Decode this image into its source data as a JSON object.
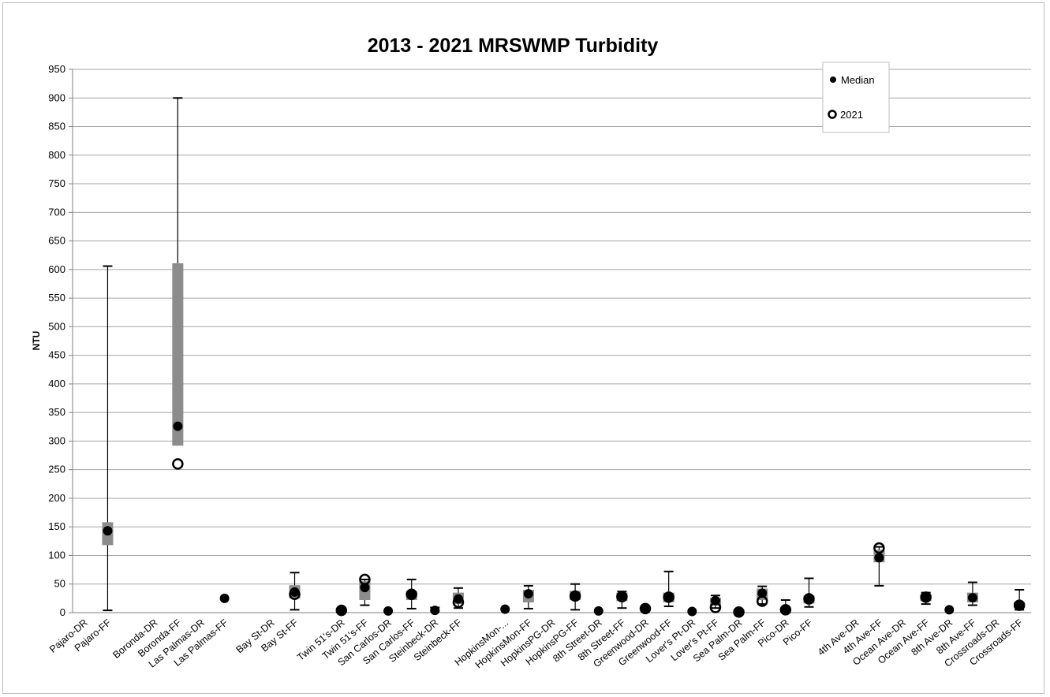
{
  "chart_data": {
    "type": "boxplot",
    "title": "2013 - 2021 MRSWMP Turbidity",
    "ylabel": "NTU",
    "ylim": [
      0,
      950
    ],
    "yticks": [
      0,
      50,
      100,
      150,
      200,
      250,
      300,
      350,
      400,
      450,
      500,
      550,
      600,
      650,
      700,
      750,
      800,
      850,
      900,
      950
    ],
    "grid": true,
    "legend": {
      "position": "top-right",
      "entries": [
        {
          "label": "Median",
          "marker": "filled-circle"
        },
        {
          "label": "2021",
          "marker": "open-circle"
        }
      ]
    },
    "colors": {
      "box": "#8c8c8c",
      "median": "#000000",
      "grid": "#a6a6a6",
      "whisker": "#000000"
    },
    "categories": [
      "Pajaro-DR",
      "Pajaro-FF",
      "",
      "Boronda-DR",
      "Boronda-FF",
      "Las Palmas-DR",
      "Las Palmas-FF",
      "",
      "Bay St-DR",
      "Bay St-FF",
      "",
      "Twin 51's-DR",
      "Twin 51's-FF",
      "San Carlos-DR",
      "San Carlos-FF",
      "Steinbeck-DR",
      "Steinbeck-FF",
      "",
      "HopkinsMon-...",
      "HopkinsMon-FF",
      "HopkinsPG-DR",
      "HopkinsPG-FF",
      "8th Street-DR",
      "8th Street-FF",
      "Greenwood-DR",
      "Greenwood-FF",
      "Lover's Pt-DR",
      "Lover's Pt-FF",
      "Sea Palm-DR",
      "Sea Palm-FF",
      "Pico-DR",
      "Pico-FF",
      "",
      "4th Ave-DR",
      "4th Ave-FF",
      "Ocean Ave-DR",
      "Ocean Ave-FF",
      "8th Ave-DR",
      "8th Ave-FF",
      "Crossroads-DR",
      "Crossroads-FF"
    ],
    "boxes": [
      {
        "index": 1,
        "min": 4,
        "q1": 118,
        "median": 143,
        "q3": 158,
        "max": 606
      },
      {
        "index": 4,
        "q1": 292,
        "median": 326,
        "q3": 611,
        "max": 900,
        "y2021": 260
      },
      {
        "index": 6,
        "median": 25
      },
      {
        "index": 9,
        "min": 5,
        "q1": 25,
        "median": 36,
        "q3": 48,
        "max": 70,
        "y2021": 32
      },
      {
        "index": 11,
        "median": 4,
        "y2021": 4
      },
      {
        "index": 12,
        "min": 13,
        "q1": 22,
        "median": 44,
        "q3": 55,
        "max": 58,
        "y2021": 58
      },
      {
        "index": 13,
        "median": 3
      },
      {
        "index": 14,
        "min": 7,
        "q1": 22,
        "median": 33,
        "q3": 38,
        "max": 58,
        "y2021": 32
      },
      {
        "index": 15,
        "min": 3,
        "median": 4,
        "max": 9
      },
      {
        "index": 16,
        "min": 8,
        "q1": 15,
        "median": 24,
        "q3": 35,
        "max": 43,
        "y2021": 18
      },
      {
        "index": 18,
        "median": 6
      },
      {
        "index": 19,
        "min": 7,
        "q1": 18,
        "median": 33,
        "q3": 40,
        "max": 47
      },
      {
        "index": 21,
        "min": 5,
        "q1": 22,
        "median": 29,
        "q3": 38,
        "max": 50,
        "y2021": 29
      },
      {
        "index": 22,
        "median": 3
      },
      {
        "index": 23,
        "min": 8,
        "q1": 20,
        "median": 30,
        "q3": 35,
        "max": 37,
        "y2021": 28
      },
      {
        "index": 24,
        "median": 7,
        "y2021": 7
      },
      {
        "index": 25,
        "min": 11,
        "q1": 18,
        "median": 27,
        "q3": 35,
        "max": 72,
        "y2021": 27
      },
      {
        "index": 26,
        "median": 2
      },
      {
        "index": 27,
        "min": 8,
        "q1": 12,
        "median": 21,
        "q3": 26,
        "max": 30,
        "y2021": 9
      },
      {
        "index": 28,
        "median": 1,
        "y2021": 1
      },
      {
        "index": 29,
        "min": 15,
        "q1": 22,
        "median": 34,
        "q3": 42,
        "max": 46,
        "y2021": 20
      },
      {
        "index": 30,
        "min": 3,
        "median": 6,
        "max": 22,
        "y2021": 5
      },
      {
        "index": 31,
        "min": 10,
        "q1": 16,
        "median": 26,
        "q3": 30,
        "max": 60,
        "y2021": 24
      },
      {
        "index": 34,
        "min": 47,
        "q1": 88,
        "median": 96,
        "q3": 110,
        "max": 115,
        "y2021": 113
      },
      {
        "index": 36,
        "min": 15,
        "q1": 20,
        "median": 27,
        "q3": 32,
        "max": 35,
        "y2021": 27
      },
      {
        "index": 37,
        "median": 5
      },
      {
        "index": 38,
        "min": 13,
        "q1": 18,
        "median": 26,
        "q3": 35,
        "max": 53
      },
      {
        "index": 40,
        "min": 5,
        "q1": 8,
        "median": 13,
        "q3": 18,
        "max": 40,
        "y2021": 13
      }
    ]
  }
}
